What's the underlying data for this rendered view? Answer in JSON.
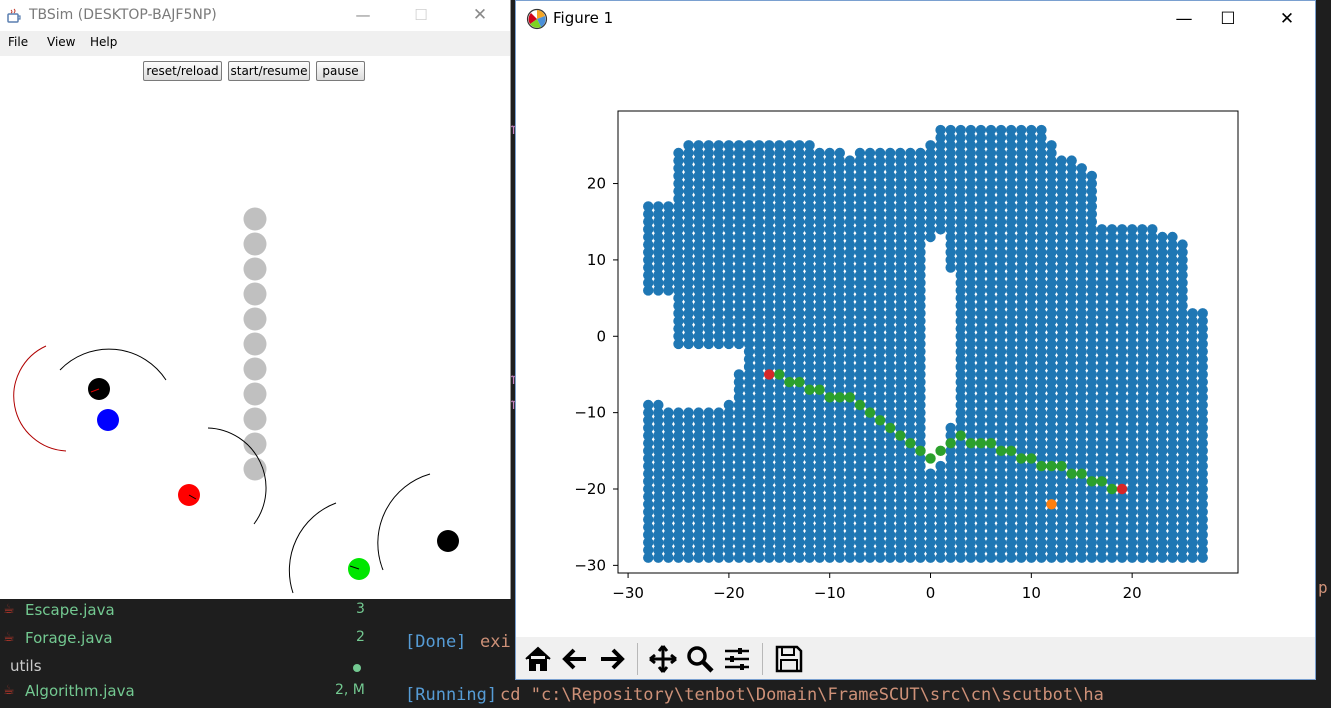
{
  "editor": {
    "files": [
      {
        "name": "Escape.java",
        "badge": "3"
      },
      {
        "name": "Forage.java",
        "badge": "2"
      },
      {
        "folder": "utils"
      },
      {
        "name": "Algorithm.java",
        "badge": "2, M"
      }
    ],
    "terminal": {
      "done_tag": "[Done]",
      "done_text": "exi",
      "running_tag": "[Running]",
      "running_text": "cd \"c:\\Repository\\tenbot\\Domain\\FrameSCUT\\src\\cn\\scutbot\\ha",
      "right_fragment": "p"
    }
  },
  "tbsim": {
    "title": "TBSim (DESKTOP-BAJF5NP)",
    "controls": {
      "minimize": "—",
      "maximize": "☐",
      "close": "✕"
    },
    "menu": [
      "File",
      "View",
      "Help"
    ],
    "buttons": [
      "reset/reload",
      "start/resume",
      "pause"
    ],
    "colors": {
      "obstacle": "#c0c0c0",
      "black": "#000000",
      "blue": "#0000ff",
      "red": "#ff0000",
      "green": "#00e600"
    }
  },
  "figure": {
    "title": "Figure 1",
    "controls": {
      "minimize": "—",
      "maximize": "☐",
      "close": "✕"
    },
    "toolbar": [
      {
        "name": "home-icon",
        "glyph": "⌂"
      },
      {
        "name": "back-icon",
        "glyph": "←"
      },
      {
        "name": "forward-icon",
        "glyph": "→"
      },
      {
        "name": "pan-icon",
        "glyph": "✥"
      },
      {
        "name": "zoom-icon",
        "glyph": "🔍"
      },
      {
        "name": "configure-subplots-icon",
        "glyph": "≡"
      },
      {
        "name": "save-icon",
        "glyph": "💾"
      }
    ]
  },
  "chart_data": {
    "type": "scatter",
    "title": "",
    "xlabel": "",
    "ylabel": "",
    "xlim": [
      -31,
      30.5
    ],
    "ylim": [
      -31,
      29.5
    ],
    "xticks": [
      -30,
      -20,
      -10,
      0,
      10,
      20
    ],
    "yticks": [
      -30,
      -20,
      -10,
      0,
      10,
      20
    ],
    "grid": false,
    "grid_spacing": 1,
    "grid_region": {
      "x_range": [
        -28,
        27
      ],
      "y_range": [
        -29,
        27
      ],
      "columns": [
        {
          "x": -28,
          "spans": [
            [
              -29,
              -9
            ],
            [
              6,
              17
            ]
          ]
        },
        {
          "x": -27,
          "spans": [
            [
              -29,
              -9
            ],
            [
              6,
              17
            ]
          ]
        },
        {
          "x": -26,
          "spans": [
            [
              -29,
              -10
            ],
            [
              6,
              17
            ]
          ]
        },
        {
          "x": -25,
          "spans": [
            [
              -29,
              -10
            ],
            [
              -1,
              24
            ]
          ]
        },
        {
          "x": -24,
          "spans": [
            [
              -29,
              -10
            ],
            [
              -1,
              25
            ]
          ]
        },
        {
          "x": -23,
          "spans": [
            [
              -29,
              -10
            ],
            [
              -1,
              25
            ]
          ]
        },
        {
          "x": -22,
          "spans": [
            [
              -29,
              -10
            ],
            [
              -1,
              25
            ]
          ]
        },
        {
          "x": -21,
          "spans": [
            [
              -29,
              -10
            ],
            [
              -1,
              25
            ]
          ]
        },
        {
          "x": -20,
          "spans": [
            [
              -29,
              -9
            ],
            [
              -1,
              25
            ]
          ]
        },
        {
          "x": -19,
          "spans": [
            [
              -29,
              -5
            ],
            [
              -1,
              25
            ]
          ]
        },
        {
          "x": -18,
          "spans": [
            [
              -29,
              25
            ]
          ]
        },
        {
          "x": -17,
          "spans": [
            [
              -29,
              25
            ]
          ]
        },
        {
          "x": -16,
          "spans": [
            [
              -29,
              25
            ]
          ]
        },
        {
          "x": -15,
          "spans": [
            [
              -29,
              25
            ]
          ]
        },
        {
          "x": -14,
          "spans": [
            [
              -29,
              25
            ]
          ]
        },
        {
          "x": -13,
          "spans": [
            [
              -29,
              25
            ]
          ]
        },
        {
          "x": -12,
          "spans": [
            [
              -29,
              25
            ]
          ]
        },
        {
          "x": -11,
          "spans": [
            [
              -29,
              24
            ]
          ]
        },
        {
          "x": -10,
          "spans": [
            [
              -29,
              24
            ]
          ]
        },
        {
          "x": -9,
          "spans": [
            [
              -29,
              24
            ]
          ]
        },
        {
          "x": -8,
          "spans": [
            [
              -29,
              23
            ]
          ]
        },
        {
          "x": -7,
          "spans": [
            [
              -29,
              24
            ]
          ]
        },
        {
          "x": -6,
          "spans": [
            [
              -29,
              24
            ]
          ]
        },
        {
          "x": -5,
          "spans": [
            [
              -29,
              24
            ]
          ]
        },
        {
          "x": -4,
          "spans": [
            [
              -29,
              24
            ]
          ]
        },
        {
          "x": -3,
          "spans": [
            [
              -29,
              24
            ]
          ]
        },
        {
          "x": -2,
          "spans": [
            [
              -29,
              24
            ]
          ]
        },
        {
          "x": -1,
          "spans": [
            [
              -29,
              2
            ],
            [
              3,
              24
            ]
          ]
        },
        {
          "x": 0,
          "spans": [
            [
              -29,
              -18
            ],
            [
              13,
              25
            ]
          ]
        },
        {
          "x": 1,
          "spans": [
            [
              -29,
              -17
            ],
            [
              14,
              27
            ]
          ]
        },
        {
          "x": 2,
          "spans": [
            [
              -29,
              -12
            ],
            [
              9,
              27
            ]
          ]
        },
        {
          "x": 3,
          "spans": [
            [
              -29,
              27
            ]
          ]
        },
        {
          "x": 4,
          "spans": [
            [
              -29,
              27
            ]
          ]
        },
        {
          "x": 5,
          "spans": [
            [
              -29,
              27
            ]
          ]
        },
        {
          "x": 6,
          "spans": [
            [
              -29,
              27
            ]
          ]
        },
        {
          "x": 7,
          "spans": [
            [
              -29,
              27
            ]
          ]
        },
        {
          "x": 8,
          "spans": [
            [
              -29,
              27
            ]
          ]
        },
        {
          "x": 9,
          "spans": [
            [
              -29,
              27
            ]
          ]
        },
        {
          "x": 10,
          "spans": [
            [
              -29,
              27
            ]
          ]
        },
        {
          "x": 11,
          "spans": [
            [
              -29,
              27
            ]
          ]
        },
        {
          "x": 12,
          "spans": [
            [
              -29,
              25
            ]
          ]
        },
        {
          "x": 13,
          "spans": [
            [
              -29,
              23
            ]
          ]
        },
        {
          "x": 14,
          "spans": [
            [
              -29,
              23
            ]
          ]
        },
        {
          "x": 15,
          "spans": [
            [
              -29,
              22
            ]
          ]
        },
        {
          "x": 16,
          "spans": [
            [
              -29,
              21
            ]
          ]
        },
        {
          "x": 17,
          "spans": [
            [
              -29,
              14
            ]
          ]
        },
        {
          "x": 18,
          "spans": [
            [
              -29,
              14
            ]
          ]
        },
        {
          "x": 19,
          "spans": [
            [
              -29,
              14
            ]
          ]
        },
        {
          "x": 20,
          "spans": [
            [
              -29,
              14
            ]
          ]
        },
        {
          "x": 21,
          "spans": [
            [
              -29,
              14
            ]
          ]
        },
        {
          "x": 22,
          "spans": [
            [
              -29,
              14
            ]
          ]
        },
        {
          "x": 23,
          "spans": [
            [
              -29,
              13
            ]
          ]
        },
        {
          "x": 24,
          "spans": [
            [
              -29,
              13
            ]
          ]
        },
        {
          "x": 25,
          "spans": [
            [
              -29,
              12
            ]
          ]
        },
        {
          "x": 26,
          "spans": [
            [
              -29,
              3
            ]
          ]
        },
        {
          "x": 27,
          "spans": [
            [
              -29,
              3
            ]
          ]
        }
      ]
    },
    "path": {
      "color": "#2ca02c",
      "points": [
        [
          -15,
          -5
        ],
        [
          -14,
          -6
        ],
        [
          -13,
          -6
        ],
        [
          -12,
          -7
        ],
        [
          -11,
          -7
        ],
        [
          -10,
          -8
        ],
        [
          -9,
          -8
        ],
        [
          -8,
          -8
        ],
        [
          -7,
          -9
        ],
        [
          -6,
          -10
        ],
        [
          -5,
          -11
        ],
        [
          -4,
          -12
        ],
        [
          -3,
          -13
        ],
        [
          -2,
          -14
        ],
        [
          -1,
          -15
        ],
        [
          0,
          -16
        ],
        [
          1,
          -15
        ],
        [
          2,
          -14
        ],
        [
          3,
          -13
        ],
        [
          4,
          -14
        ],
        [
          5,
          -14
        ],
        [
          6,
          -14
        ],
        [
          7,
          -15
        ],
        [
          8,
          -15
        ],
        [
          9,
          -16
        ],
        [
          10,
          -16
        ],
        [
          11,
          -17
        ],
        [
          12,
          -17
        ],
        [
          13,
          -17
        ],
        [
          14,
          -18
        ],
        [
          15,
          -18
        ],
        [
          16,
          -19
        ],
        [
          17,
          -19
        ],
        [
          18,
          -20
        ]
      ]
    },
    "start": {
      "x": -16,
      "y": -5,
      "color": "#d62728"
    },
    "goal": {
      "x": 19,
      "y": -20,
      "color": "#d62728"
    },
    "marker": {
      "x": 12,
      "y": -22,
      "color": "#ff7f0e"
    },
    "colors": {
      "grid_points": "#1f77b4"
    }
  }
}
